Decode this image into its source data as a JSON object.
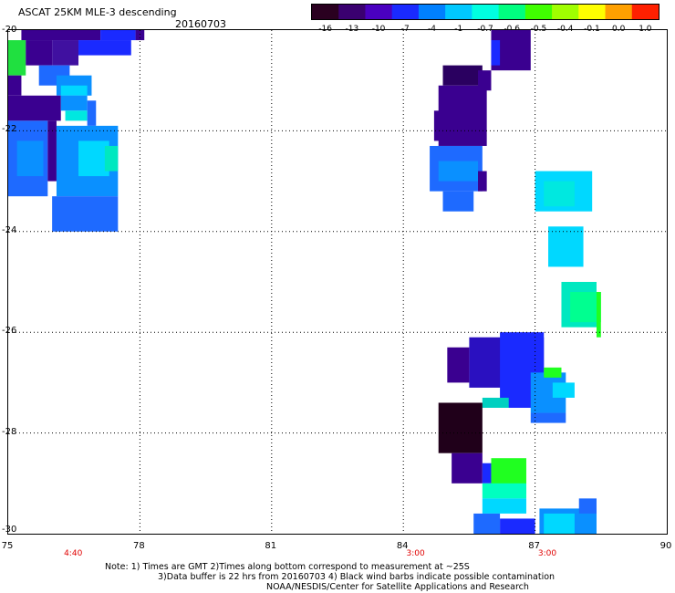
{
  "header": {
    "title": "ASCAT 25KM MLE-3 descending",
    "date": "20160703"
  },
  "colorbar": {
    "labels": [
      "-16",
      "-13",
      "-10",
      "-7",
      "-4",
      "-1",
      "-0.7",
      "-0.6",
      "-0.5",
      "-0.4",
      "-0.1",
      "0.0",
      "1.0"
    ],
    "colors": [
      "#2a0020",
      "#3a0070",
      "#4a00c0",
      "#1a2aff",
      "#0080ff",
      "#00c8ff",
      "#00ffe0",
      "#00ff80",
      "#40ff00",
      "#a0ff00",
      "#ffff00",
      "#ffa000",
      "#ff2000"
    ]
  },
  "axes": {
    "lon_labels": [
      "75",
      "78",
      "81",
      "84",
      "87",
      "90"
    ],
    "lon_values": [
      75,
      78,
      81,
      84,
      87,
      90
    ],
    "lat_labels": [
      "-20",
      "-22",
      "-24",
      "-26",
      "-28",
      "-30"
    ],
    "lat_values": [
      -20,
      -22,
      -24,
      -26,
      -28,
      -30
    ],
    "lon_range": [
      75,
      90
    ],
    "lat_range": [
      -20,
      -30
    ],
    "grid": "dotted"
  },
  "time_labels": [
    {
      "text": "4:40",
      "lon": 76.5
    },
    {
      "text": "3:00",
      "lon": 84.3
    },
    {
      "text": "3:00",
      "lon": 87.3
    }
  ],
  "notes": [
    "Note: 1) Times are GMT 2)Times along bottom correspond to measurement at ~25S",
    "3)Data buffer is 22 hrs from 20160703 4) Black wind barbs indicate possible contamination",
    "NOAA/NESDIS/Center for Satellite Applications and Research"
  ],
  "swaths": [
    {
      "lon0": 75.3,
      "lon1": 77.1,
      "lat0": -20.0,
      "lat1": -20.2,
      "color": "#3a0090"
    },
    {
      "lon0": 77.1,
      "lon1": 77.9,
      "lat0": -20.0,
      "lat1": -20.2,
      "color": "#1a2aff"
    },
    {
      "lon0": 77.9,
      "lon1": 78.1,
      "lat0": -20.0,
      "lat1": -20.2,
      "color": "#3a0090"
    },
    {
      "lon0": 75.0,
      "lon1": 75.4,
      "lat0": -20.2,
      "lat1": -20.9,
      "color": "#20e040"
    },
    {
      "lon0": 75.4,
      "lon1": 76.0,
      "lat0": -20.2,
      "lat1": -20.7,
      "color": "#3a0090"
    },
    {
      "lon0": 76.0,
      "lon1": 76.6,
      "lat0": -20.2,
      "lat1": -20.7,
      "color": "#4010a0"
    },
    {
      "lon0": 76.6,
      "lon1": 77.8,
      "lat0": -20.2,
      "lat1": -20.5,
      "color": "#1a2aff"
    },
    {
      "lon0": 75.7,
      "lon1": 76.4,
      "lat0": -20.7,
      "lat1": -21.1,
      "color": "#1e6aff"
    },
    {
      "lon0": 75.0,
      "lon1": 75.3,
      "lat0": -20.9,
      "lat1": -21.3,
      "color": "#3a0090"
    },
    {
      "lon0": 76.1,
      "lon1": 76.9,
      "lat0": -20.9,
      "lat1": -21.3,
      "color": "#0a90ff"
    },
    {
      "lon0": 76.2,
      "lon1": 76.8,
      "lat0": -21.1,
      "lat1": -21.3,
      "color": "#00d8ff"
    },
    {
      "lon0": 75.0,
      "lon1": 76.2,
      "lat0": -21.3,
      "lat1": -21.8,
      "color": "#3a0090"
    },
    {
      "lon0": 76.2,
      "lon1": 76.8,
      "lat0": -21.3,
      "lat1": -21.6,
      "color": "#0a90ff"
    },
    {
      "lon0": 76.3,
      "lon1": 76.8,
      "lat0": -21.6,
      "lat1": -21.8,
      "color": "#00e8e0"
    },
    {
      "lon0": 76.8,
      "lon1": 77.0,
      "lat0": -21.4,
      "lat1": -21.9,
      "color": "#1e6aff"
    },
    {
      "lon0": 75.0,
      "lon1": 75.9,
      "lat0": -21.8,
      "lat1": -23.3,
      "color": "#1e6aff"
    },
    {
      "lon0": 75.2,
      "lon1": 75.8,
      "lat0": -22.2,
      "lat1": -22.9,
      "color": "#0a90ff"
    },
    {
      "lon0": 75.9,
      "lon1": 76.1,
      "lat0": -21.8,
      "lat1": -23.0,
      "color": "#3a0090"
    },
    {
      "lon0": 76.1,
      "lon1": 77.5,
      "lat0": -21.9,
      "lat1": -23.3,
      "color": "#0a90ff"
    },
    {
      "lon0": 76.6,
      "lon1": 77.3,
      "lat0": -22.2,
      "lat1": -22.9,
      "color": "#00d8ff"
    },
    {
      "lon0": 77.2,
      "lon1": 77.5,
      "lat0": -22.3,
      "lat1": -22.8,
      "color": "#00e8c0"
    },
    {
      "lon0": 76.0,
      "lon1": 77.5,
      "lat0": -23.3,
      "lat1": -24.0,
      "color": "#1e6aff"
    },
    {
      "lon0": 86.0,
      "lon1": 86.9,
      "lat0": -20.0,
      "lat1": -20.8,
      "color": "#3a0090"
    },
    {
      "lon0": 86.0,
      "lon1": 86.2,
      "lat0": -20.2,
      "lat1": -20.7,
      "color": "#1a2aff"
    },
    {
      "lon0": 84.9,
      "lon1": 85.8,
      "lat0": -20.7,
      "lat1": -21.1,
      "color": "#2a0060"
    },
    {
      "lon0": 85.7,
      "lon1": 86.0,
      "lat0": -20.8,
      "lat1": -21.2,
      "color": "#3a0090"
    },
    {
      "lon0": 84.8,
      "lon1": 85.9,
      "lat0": -21.1,
      "lat1": -22.3,
      "color": "#3a0090"
    },
    {
      "lon0": 84.7,
      "lon1": 85.2,
      "lat0": -21.6,
      "lat1": -22.2,
      "color": "#3a0090"
    },
    {
      "lon0": 84.6,
      "lon1": 85.8,
      "lat0": -22.3,
      "lat1": -23.2,
      "color": "#1e6aff"
    },
    {
      "lon0": 84.8,
      "lon1": 85.7,
      "lat0": -22.6,
      "lat1": -23.0,
      "color": "#0a90ff"
    },
    {
      "lon0": 84.9,
      "lon1": 85.6,
      "lat0": -23.2,
      "lat1": -23.6,
      "color": "#1e6aff"
    },
    {
      "lon0": 85.7,
      "lon1": 85.9,
      "lat0": -22.8,
      "lat1": -23.2,
      "color": "#3a0090"
    },
    {
      "lon0": 87.0,
      "lon1": 88.3,
      "lat0": -22.8,
      "lat1": -23.6,
      "color": "#00d8ff"
    },
    {
      "lon0": 87.2,
      "lon1": 87.9,
      "lat0": -23.0,
      "lat1": -23.5,
      "color": "#00e8e0"
    },
    {
      "lon0": 87.3,
      "lon1": 88.1,
      "lat0": -23.9,
      "lat1": -24.7,
      "color": "#00d8ff"
    },
    {
      "lon0": 87.6,
      "lon1": 88.4,
      "lat0": -25.0,
      "lat1": -25.9,
      "color": "#00e8c0"
    },
    {
      "lon0": 87.8,
      "lon1": 88.5,
      "lat0": -25.2,
      "lat1": -25.8,
      "color": "#00ff90"
    },
    {
      "lon0": 88.4,
      "lon1": 88.5,
      "lat0": -25.2,
      "lat1": -26.1,
      "color": "#20ff20"
    },
    {
      "lon0": 85.5,
      "lon1": 87.2,
      "lat0": -26.1,
      "lat1": -27.1,
      "color": "#2a10c0"
    },
    {
      "lon0": 85.0,
      "lon1": 85.5,
      "lat0": -26.3,
      "lat1": -27.0,
      "color": "#3a0090"
    },
    {
      "lon0": 86.2,
      "lon1": 87.2,
      "lat0": -26.0,
      "lat1": -27.5,
      "color": "#1a2aff"
    },
    {
      "lon0": 86.9,
      "lon1": 87.7,
      "lat0": -26.8,
      "lat1": -27.6,
      "color": "#0a90ff"
    },
    {
      "lon0": 87.2,
      "lon1": 87.6,
      "lat0": -26.7,
      "lat1": -26.9,
      "color": "#20ff20"
    },
    {
      "lon0": 87.4,
      "lon1": 87.9,
      "lat0": -27.0,
      "lat1": -27.3,
      "color": "#00d8ff"
    },
    {
      "lon0": 86.9,
      "lon1": 87.7,
      "lat0": -27.6,
      "lat1": -27.8,
      "color": "#1e6aff"
    },
    {
      "lon0": 85.8,
      "lon1": 86.4,
      "lat0": -27.3,
      "lat1": -27.5,
      "color": "#00d0c0"
    },
    {
      "lon0": 84.8,
      "lon1": 85.8,
      "lat0": -27.4,
      "lat1": -28.4,
      "color": "#20001a"
    },
    {
      "lon0": 85.1,
      "lon1": 85.8,
      "lat0": -28.4,
      "lat1": -29.0,
      "color": "#3a0090"
    },
    {
      "lon0": 85.8,
      "lon1": 86.0,
      "lat0": -28.6,
      "lat1": -29.0,
      "color": "#1a2aff"
    },
    {
      "lon0": 86.0,
      "lon1": 86.8,
      "lat0": -28.5,
      "lat1": -29.2,
      "color": "#20ff20"
    },
    {
      "lon0": 85.8,
      "lon1": 86.8,
      "lat0": -29.0,
      "lat1": -29.3,
      "color": "#00ffc0"
    },
    {
      "lon0": 85.8,
      "lon1": 86.8,
      "lat0": -29.3,
      "lat1": -29.6,
      "color": "#00d8ff"
    },
    {
      "lon0": 85.6,
      "lon1": 86.2,
      "lat0": -29.6,
      "lat1": -30.0,
      "color": "#1e6aff"
    },
    {
      "lon0": 86.2,
      "lon1": 87.0,
      "lat0": -29.7,
      "lat1": -30.0,
      "color": "#1a2aff"
    },
    {
      "lon0": 87.1,
      "lon1": 88.4,
      "lat0": -29.5,
      "lat1": -30.0,
      "color": "#0a90ff"
    },
    {
      "lon0": 87.2,
      "lon1": 87.9,
      "lat0": -29.6,
      "lat1": -30.0,
      "color": "#00d8ff"
    },
    {
      "lon0": 88.0,
      "lon1": 88.4,
      "lat0": -29.3,
      "lat1": -29.6,
      "color": "#1e6aff"
    }
  ]
}
